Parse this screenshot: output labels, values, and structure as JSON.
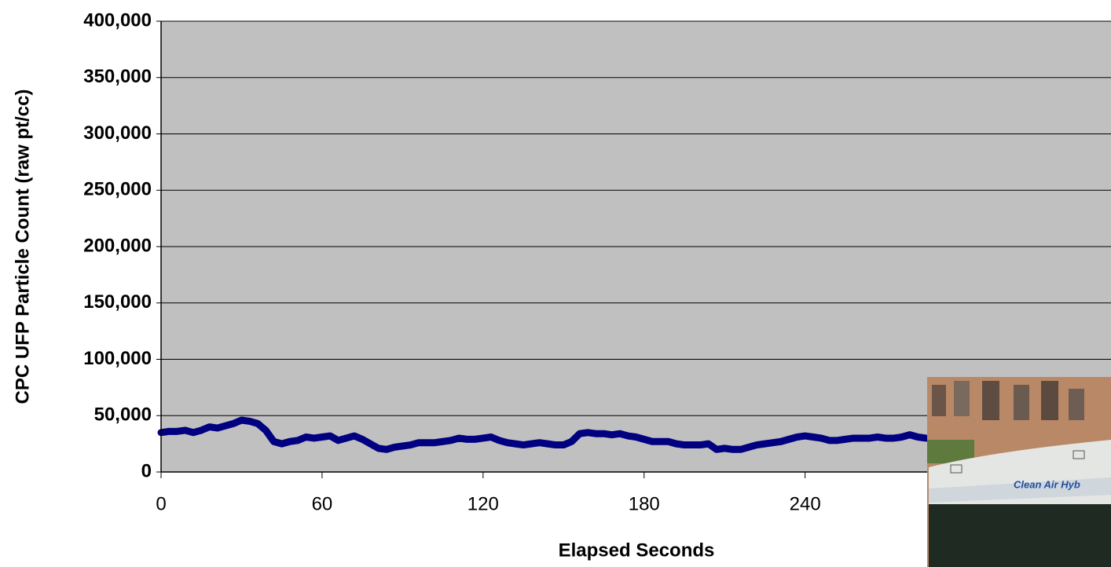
{
  "chart_data": {
    "type": "line",
    "x_label": "Elapsed Seconds",
    "y_label": "CPC UFP Particle Count (raw pt/cc)",
    "annotations": [
      "Clean Air Hyb"
    ],
    "x": [
      0,
      3,
      6,
      9,
      12,
      15,
      18,
      21,
      24,
      27,
      30,
      33,
      36,
      39,
      42,
      45,
      48,
      51,
      54,
      57,
      60,
      63,
      66,
      69,
      72,
      75,
      78,
      81,
      84,
      87,
      90,
      93,
      96,
      99,
      102,
      105,
      108,
      111,
      114,
      117,
      120,
      123,
      126,
      129,
      132,
      135,
      138,
      141,
      144,
      147,
      150,
      153,
      156,
      159,
      162,
      165,
      168,
      171,
      174,
      177,
      180,
      183,
      186,
      189,
      192,
      195,
      198,
      201,
      204,
      207,
      210,
      213,
      216,
      219,
      222,
      225,
      228,
      231,
      234,
      237,
      240,
      243,
      246,
      249,
      252,
      255,
      258,
      261,
      264,
      267,
      270,
      273,
      276,
      279,
      282,
      285
    ],
    "series": [
      {
        "color": "#000080",
        "values": [
          35000,
          36000,
          36000,
          37000,
          35000,
          37000,
          40000,
          39000,
          41000,
          43000,
          46000,
          45000,
          43000,
          37000,
          27000,
          25000,
          27000,
          28000,
          31000,
          30000,
          31000,
          32000,
          28000,
          30000,
          32000,
          29000,
          25000,
          21000,
          20000,
          22000,
          23000,
          24000,
          26000,
          26000,
          26000,
          27000,
          28000,
          30000,
          29000,
          29000,
          30000,
          31000,
          28000,
          26000,
          25000,
          24000,
          25000,
          26000,
          25000,
          24000,
          24000,
          27000,
          34000,
          35000,
          34000,
          34000,
          33000,
          34000,
          32000,
          31000,
          29000,
          27000,
          27000,
          27000,
          25000,
          24000,
          24000,
          24000,
          25000,
          20000,
          21000,
          20000,
          20000,
          22000,
          24000,
          25000,
          26000,
          27000,
          29000,
          31000,
          32000,
          31000,
          30000,
          28000,
          28000,
          29000,
          30000,
          30000,
          30000,
          31000,
          30000,
          30000,
          31000,
          33000,
          31000,
          30000
        ]
      }
    ],
    "xlim": [
      0,
      354
    ],
    "xticks": [
      0,
      60,
      120,
      180,
      240
    ],
    "ylim": [
      0,
      400000
    ],
    "yticks": [
      0,
      {
        "value": 50000,
        "label": "50,000"
      },
      {
        "value": 100000,
        "label": "100,000"
      },
      {
        "value": 150000,
        "label": "150,000"
      },
      {
        "value": 200000,
        "label": "200,000"
      },
      {
        "value": 250000,
        "label": "250,000"
      },
      {
        "value": 300000,
        "label": "300,000"
      },
      {
        "value": 350000,
        "label": "350,000"
      },
      {
        "value": 400000,
        "label": "400,000"
      }
    ],
    "grid": true,
    "plot_background": "#c0c0c0"
  }
}
